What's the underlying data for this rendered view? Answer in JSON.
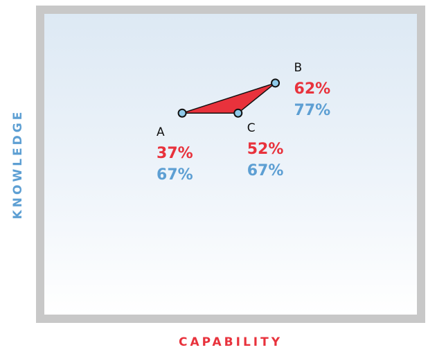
{
  "chart_data": {
    "type": "scatter",
    "xlabel": "CAPABILITY",
    "ylabel": "KNOWLEDGE",
    "xlim": [
      0,
      100
    ],
    "ylim": [
      0,
      100
    ],
    "grid": false,
    "points": [
      {
        "name": "A",
        "x": 37,
        "y": 67,
        "x_label": "37%",
        "y_label": "67%",
        "label_side": "below-left"
      },
      {
        "name": "B",
        "x": 62,
        "y": 77,
        "x_label": "62%",
        "y_label": "77%",
        "label_side": "above-right"
      },
      {
        "name": "C",
        "x": 52,
        "y": 67,
        "x_label": "52%",
        "y_label": "67%",
        "label_side": "below-right"
      }
    ],
    "colors": {
      "x_value": "#e8323c",
      "y_value": "#5d9fd3",
      "fill": "#e8323c",
      "marker": "#8fcaea",
      "frame": "#c8c8c8"
    }
  }
}
